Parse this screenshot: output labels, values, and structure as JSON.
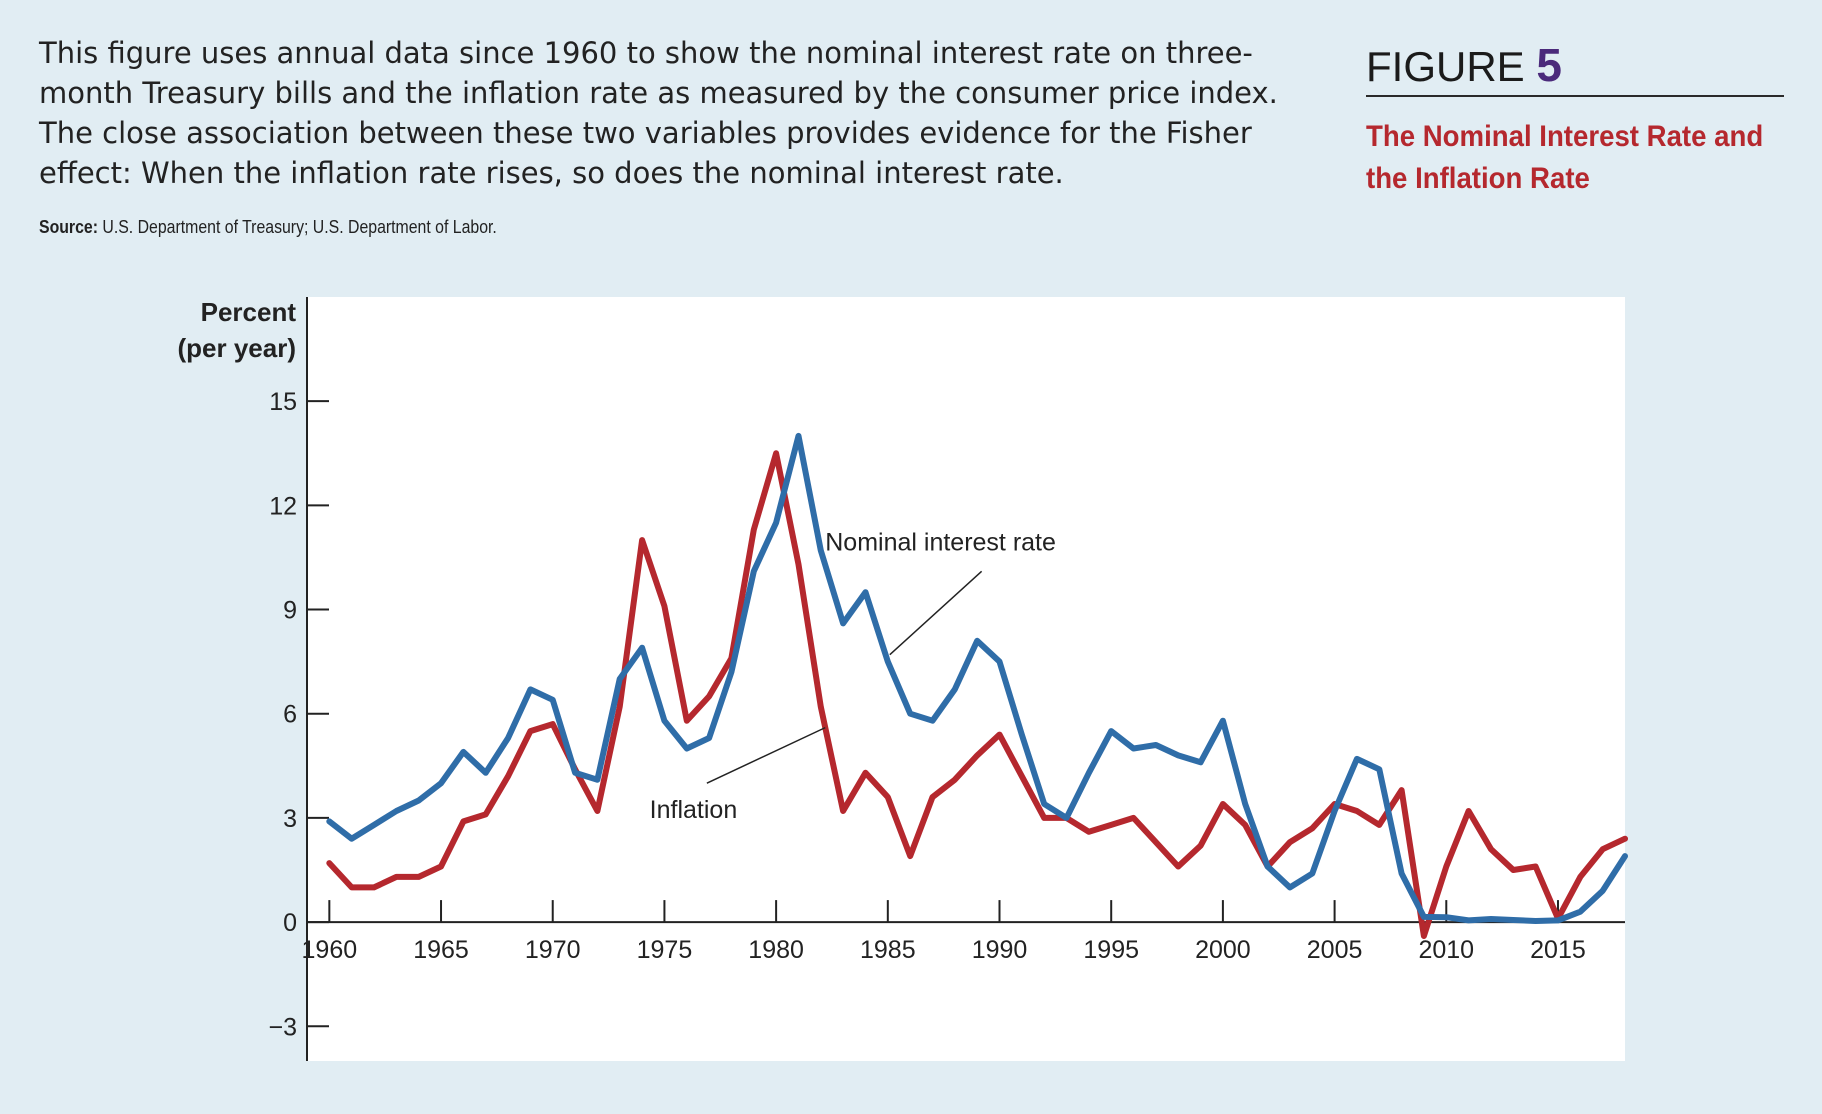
{
  "caption": "This figure uses annual data since 1960 to show the nominal interest rate on three-month Treasury bills and the inflation rate as measured by the consumer price index. The close association between these two variables provides evidence for the Fisher effect: When the inflation rate rises, so does the nominal interest rate.",
  "source": {
    "label": "Source:",
    "text": "U.S. Department of Treasury; U.S. Department of Labor."
  },
  "figure": {
    "label": "FIGURE",
    "number": "5",
    "title": "The Nominal Interest Rate and the Inflation Rate"
  },
  "colors": {
    "background": "#e1edf3",
    "nominal": "#2f6da8",
    "inflation": "#b5282e",
    "figure_number": "#4b2a7b",
    "title": "#b5282e"
  },
  "chart_data": {
    "type": "line",
    "ylabel_line1": "Percent",
    "ylabel_line2": "(per year)",
    "xlim": [
      1959,
      2018
    ],
    "ylim": [
      -4,
      18
    ],
    "yticks": [
      15,
      12,
      9,
      6,
      3,
      0,
      -3
    ],
    "ytick_labels": [
      "15",
      "12",
      "9",
      "6",
      "3",
      "0",
      "−3"
    ],
    "xticks": [
      1960,
      1965,
      1970,
      1975,
      1980,
      1985,
      1990,
      1995,
      2000,
      2005,
      2010,
      2015
    ],
    "xtick_labels": [
      "1960",
      "1965",
      "1970",
      "1975",
      "1980",
      "1985",
      "1990",
      "1995",
      "2000",
      "2005",
      "2010",
      "2015"
    ],
    "grid": false,
    "annotations": [
      {
        "text": "Nominal interest rate",
        "series": "nominal"
      },
      {
        "text": "Inflation",
        "series": "inflation"
      }
    ],
    "x": [
      1960,
      1961,
      1962,
      1963,
      1964,
      1965,
      1966,
      1967,
      1968,
      1969,
      1970,
      1971,
      1972,
      1973,
      1974,
      1975,
      1976,
      1977,
      1978,
      1979,
      1980,
      1981,
      1982,
      1983,
      1984,
      1985,
      1986,
      1987,
      1988,
      1989,
      1990,
      1991,
      1992,
      1993,
      1994,
      1995,
      1996,
      1997,
      1998,
      1999,
      2000,
      2001,
      2002,
      2003,
      2004,
      2005,
      2006,
      2007,
      2008,
      2009,
      2010,
      2011,
      2012,
      2013,
      2014,
      2015,
      2016,
      2017,
      2018
    ],
    "series": [
      {
        "key": "nominal",
        "values": [
          2.9,
          2.4,
          2.8,
          3.2,
          3.5,
          4.0,
          4.9,
          4.3,
          5.3,
          6.7,
          6.4,
          4.3,
          4.1,
          7.0,
          7.9,
          5.8,
          5.0,
          5.3,
          7.2,
          10.1,
          11.5,
          14.0,
          10.7,
          8.6,
          9.5,
          7.5,
          6.0,
          5.8,
          6.7,
          8.1,
          7.5,
          5.4,
          3.4,
          3.0,
          4.3,
          5.5,
          5.0,
          5.1,
          4.8,
          4.6,
          5.8,
          3.4,
          1.6,
          1.0,
          1.4,
          3.2,
          4.7,
          4.4,
          1.4,
          0.15,
          0.14,
          0.05,
          0.09,
          0.06,
          0.03,
          0.05,
          0.3,
          0.9,
          1.9
        ]
      },
      {
        "key": "inflation",
        "values": [
          1.7,
          1.0,
          1.0,
          1.3,
          1.3,
          1.6,
          2.9,
          3.1,
          4.2,
          5.5,
          5.7,
          4.4,
          3.2,
          6.2,
          11.0,
          9.1,
          5.8,
          6.5,
          7.6,
          11.3,
          13.5,
          10.3,
          6.2,
          3.2,
          4.3,
          3.6,
          1.9,
          3.6,
          4.1,
          4.8,
          5.4,
          4.2,
          3.0,
          3.0,
          2.6,
          2.8,
          3.0,
          2.3,
          1.6,
          2.2,
          3.4,
          2.8,
          1.6,
          2.3,
          2.7,
          3.4,
          3.2,
          2.8,
          3.8,
          -0.4,
          1.6,
          3.2,
          2.1,
          1.5,
          1.6,
          0.1,
          1.3,
          2.1,
          2.4
        ]
      }
    ]
  }
}
